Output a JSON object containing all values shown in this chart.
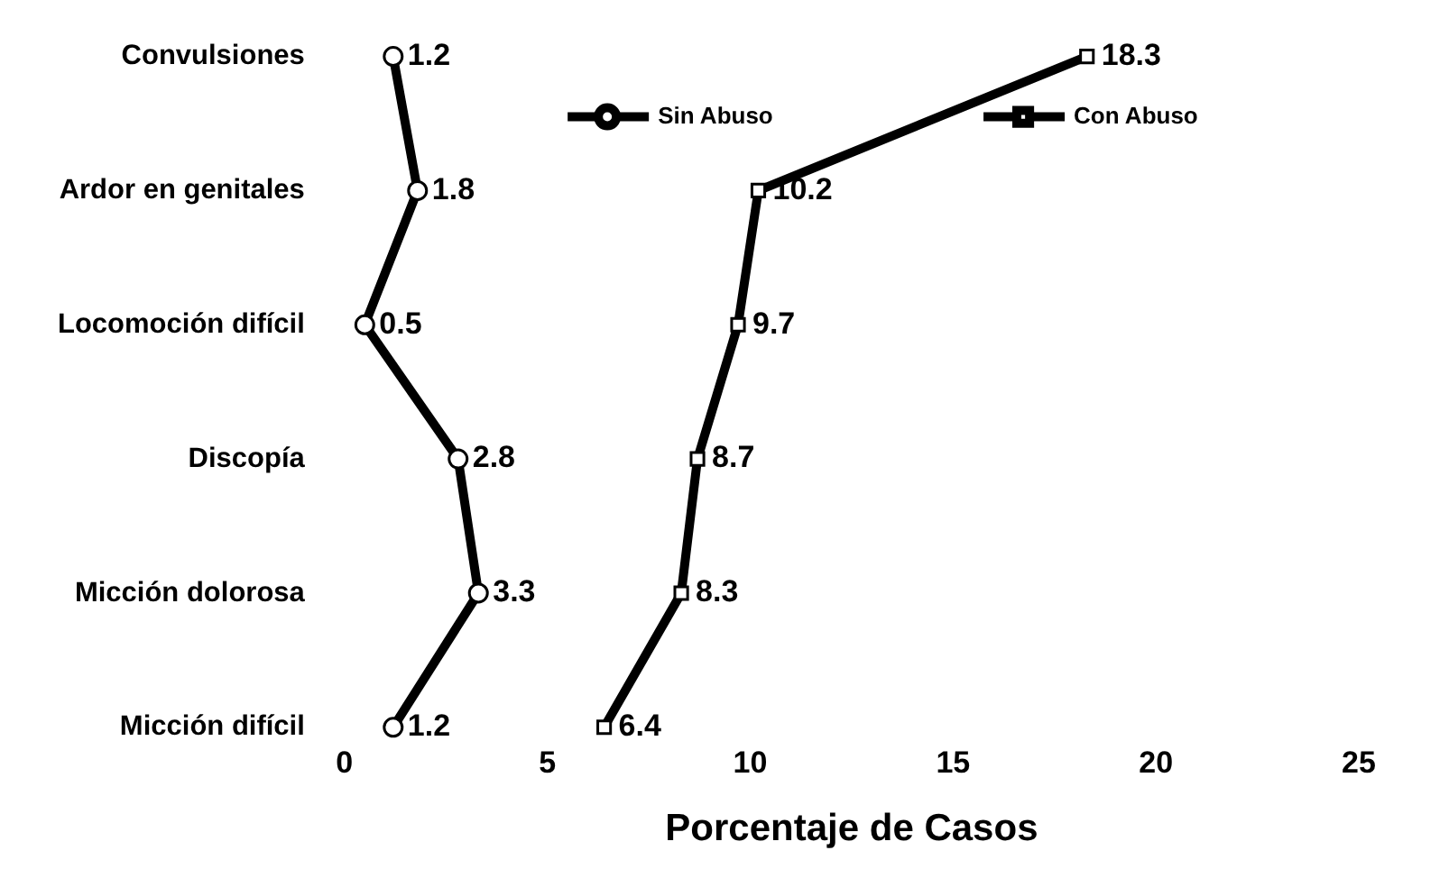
{
  "chart_data": {
    "type": "line",
    "orientation": "horizontal",
    "categories": [
      "Convulsiones",
      "Ardor en genitales",
      "Locomoción difícil",
      "Discopía",
      "Micción dolorosa",
      "Micción difícil"
    ],
    "series": [
      {
        "name": "Sin Abuso",
        "color": "#000000",
        "marker": "circle",
        "values": [
          1.2,
          1.8,
          0.5,
          2.8,
          3.3,
          1.2
        ]
      },
      {
        "name": "Con Abuso",
        "color": "#000000",
        "marker": "square",
        "values": [
          18.3,
          10.2,
          9.7,
          8.7,
          8.3,
          6.4
        ]
      }
    ],
    "xlabel": "Porcentaje de Casos",
    "xlim": [
      0,
      25
    ],
    "xticks": [
      0,
      5,
      10,
      15,
      20,
      25
    ],
    "grid": false,
    "legend": "top",
    "data_labels": true,
    "line_style": "solid"
  }
}
